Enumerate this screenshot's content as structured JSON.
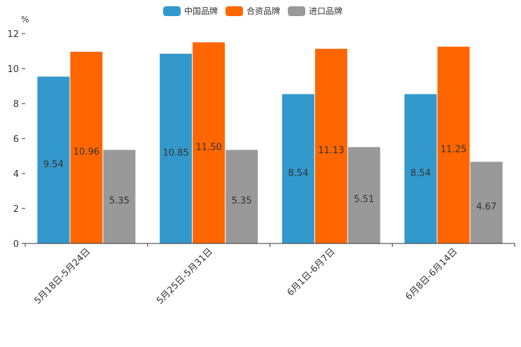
{
  "chart_data": {
    "type": "bar",
    "unit_label": "%",
    "categories": [
      "5月18日-5月24日",
      "5月25日-5月31日",
      "6月1日-6月7日",
      "6月8日-6月14日"
    ],
    "series": [
      {
        "name": "中国品牌",
        "color": "#3399cc",
        "values": [
          9.54,
          10.85,
          8.54,
          8.54
        ],
        "labels": [
          "9.54",
          "10.85",
          "8.54",
          "8.54"
        ]
      },
      {
        "name": "合资品牌",
        "color": "#ff6600",
        "values": [
          10.96,
          11.5,
          11.13,
          11.25
        ],
        "labels": [
          "10.96",
          "11.50",
          "11.13",
          "11.25"
        ]
      },
      {
        "name": "进口品牌",
        "color": "#999999",
        "values": [
          5.35,
          5.35,
          5.51,
          4.67
        ],
        "labels": [
          "5.35",
          "5.35",
          "5.51",
          "4.67"
        ]
      }
    ],
    "ylim": [
      0,
      12
    ],
    "yticks": [
      0,
      2,
      4,
      6,
      8,
      10,
      12
    ],
    "ytick_labels": [
      "0",
      "2",
      "4",
      "6",
      "8",
      "10",
      "12"
    ],
    "legend_position": "top-center",
    "grid": false
  }
}
